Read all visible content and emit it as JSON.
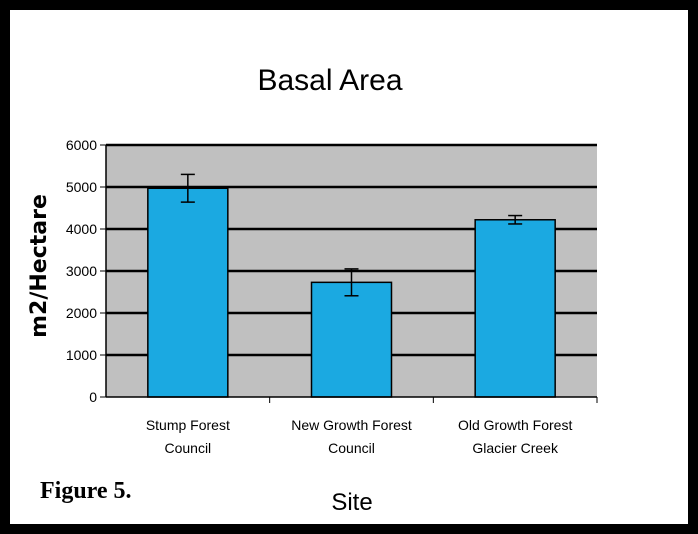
{
  "figure_label": "Figure 5.",
  "colors": {
    "bar": "#1BA9E1",
    "plot_bg": "#C0C0C0",
    "border": "#000000"
  },
  "chart_data": {
    "type": "bar",
    "title": "Basal Area",
    "xlabel": "Site",
    "ylabel": "m2/Hectare",
    "ylim": [
      0,
      6000
    ],
    "yticks": [
      0,
      1000,
      2000,
      3000,
      4000,
      5000,
      6000
    ],
    "grid": true,
    "categories": [
      [
        "Stump Forest",
        "Council"
      ],
      [
        "New Growth Forest",
        "Council"
      ],
      [
        "Old Growth Forest",
        "Glacier Creek"
      ]
    ],
    "values": [
      4970,
      2730,
      4220
    ],
    "error": [
      330,
      320,
      100
    ]
  }
}
